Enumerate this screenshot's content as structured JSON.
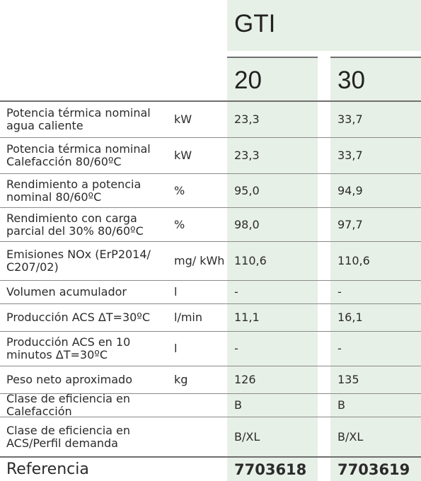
{
  "header": {
    "model": "GTI",
    "sizes": [
      "20",
      "30"
    ]
  },
  "rows": [
    {
      "param": "Potencia térmica nominal agua caliente",
      "unit": "kW",
      "v1": "23,3",
      "v2": "33,7"
    },
    {
      "param": "Potencia térmica nominal Calefacción 80/60ºC",
      "unit": "kW",
      "v1": "23,3",
      "v2": "33,7"
    },
    {
      "param": "Rendimiento a potencia nominal 80/60ºC",
      "unit": "%",
      "v1": "95,0",
      "v2": "94,9"
    },
    {
      "param": "Rendimiento con carga parcial del 30% 80/60ºC",
      "unit": "%",
      "v1": "98,0",
      "v2": "97,7"
    },
    {
      "param": "Emisiones NOx (ErP2014/ C207/02)",
      "unit": "mg/ kWh",
      "v1": "110,6",
      "v2": "110,6"
    },
    {
      "param": "Volumen acumulador",
      "unit": "l",
      "v1": "-",
      "v2": "-"
    },
    {
      "param": "Producción ACS ΔT=30ºC",
      "unit": "l/min",
      "v1": "11,1",
      "v2": "16,1"
    },
    {
      "param": "Producción ACS en 10 minutos ΔT=30ºC",
      "unit": "l",
      "v1": "-",
      "v2": "-"
    },
    {
      "param": "Peso neto aproximado",
      "unit": "kg",
      "v1": "126",
      "v2": "135"
    },
    {
      "param": "Clase de eficiencia en Calefacción",
      "unit": "",
      "v1": "B",
      "v2": "B"
    },
    {
      "param": "Clase de eficiencia en ACS/Perfil demanda",
      "unit": "",
      "v1": "B/XL",
      "v2": "B/XL"
    }
  ],
  "reference": {
    "label": "Referencia",
    "v1": "7703618",
    "v2": "7703619"
  }
}
